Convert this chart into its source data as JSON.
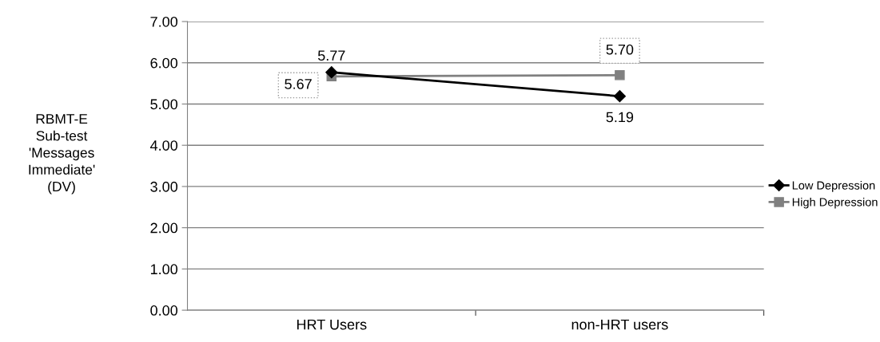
{
  "chart_data": {
    "type": "line",
    "ylabel": "RBMT-E\nSub-test\n'Messages\nImmediate'\n(DV)",
    "categories": [
      "HRT Users",
      "non-HRT users"
    ],
    "series": [
      {
        "name": "Low Depression",
        "color": "#000000",
        "values": [
          5.77,
          5.19
        ],
        "value_labels": [
          "5.77",
          "5.19"
        ],
        "marker": "diamond"
      },
      {
        "name": "High Depression",
        "color": "#808080",
        "values": [
          5.67,
          5.7
        ],
        "value_labels": [
          "5.67",
          "5.70"
        ],
        "marker": "square"
      }
    ],
    "ylim": [
      0,
      7
    ],
    "yticks": [
      {
        "value": 0,
        "label": "0.00"
      },
      {
        "value": 1,
        "label": "1.00"
      },
      {
        "value": 2,
        "label": "2.00"
      },
      {
        "value": 3,
        "label": "3.00"
      },
      {
        "value": 4,
        "label": "4.00"
      },
      {
        "value": 5,
        "label": "5.00"
      },
      {
        "value": 6,
        "label": "6.00"
      },
      {
        "value": 7,
        "label": "7.00"
      }
    ],
    "grid": "y",
    "legend": "right",
    "line_style": "solid"
  }
}
